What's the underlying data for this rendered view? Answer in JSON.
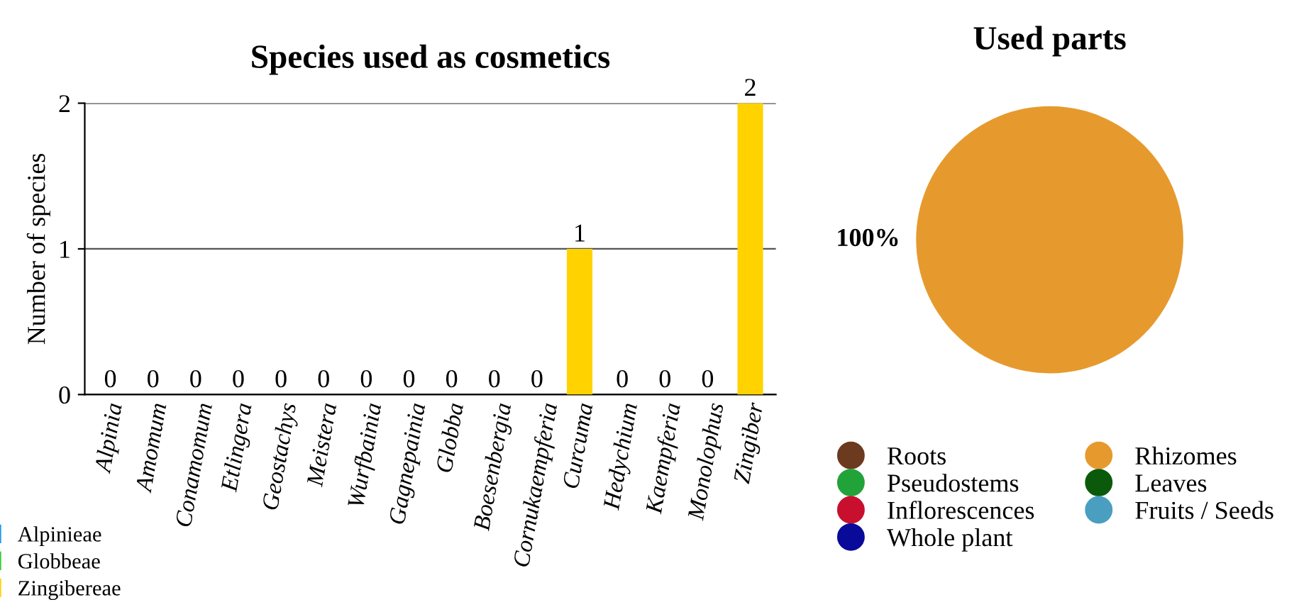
{
  "chart_data": [
    {
      "type": "bar",
      "title": "Species used as cosmetics",
      "ylabel": "Number of species",
      "categories": [
        "Alpinia",
        "Amomum",
        "Conamomum",
        "Etlingera",
        "Geostachys",
        "Meistera",
        "Wurfbainia",
        "Gagnepainia",
        "Globba",
        "Boesenbergia",
        "Cornukaempferia",
        "Curcuma",
        "Hedychium",
        "Kaempferia",
        "Monolophus",
        "Zingiber"
      ],
      "series": [
        {
          "name": "Alpinieae",
          "color": "#1a9af0",
          "values": [
            0,
            0,
            0,
            0,
            0,
            0,
            0,
            null,
            null,
            null,
            null,
            null,
            null,
            null,
            null,
            null
          ]
        },
        {
          "name": "Globbeae",
          "color": "#33cc33",
          "values": [
            null,
            null,
            null,
            null,
            null,
            null,
            null,
            0,
            0,
            null,
            null,
            null,
            null,
            null,
            null,
            null
          ]
        },
        {
          "name": "Zingibereae",
          "color": "#ffd200",
          "values": [
            null,
            null,
            null,
            null,
            null,
            null,
            null,
            null,
            null,
            0,
            0,
            1,
            0,
            0,
            0,
            2
          ]
        }
      ],
      "ylim": [
        0,
        2
      ],
      "yticks": [
        0,
        1,
        2
      ],
      "grid": "y",
      "data_labels": true,
      "legend": "bottom left"
    },
    {
      "type": "pie",
      "title": "Used parts",
      "categories": [
        "Roots",
        "Pseudostems",
        "Inflorescences",
        "Whole plant",
        "Rhizomes",
        "Leaves",
        "Fruits / Seeds"
      ],
      "values": [
        0,
        0,
        0,
        0,
        100,
        0,
        0
      ],
      "colors": [
        "#6b3a1f",
        "#22a33a",
        "#c8102e",
        "#0a0a9a",
        "#e69a2e",
        "#0b5a0b",
        "#4a9fc0"
      ],
      "value_labels": [
        null,
        null,
        null,
        null,
        "100%",
        null,
        null
      ],
      "legend": "bottom"
    }
  ]
}
